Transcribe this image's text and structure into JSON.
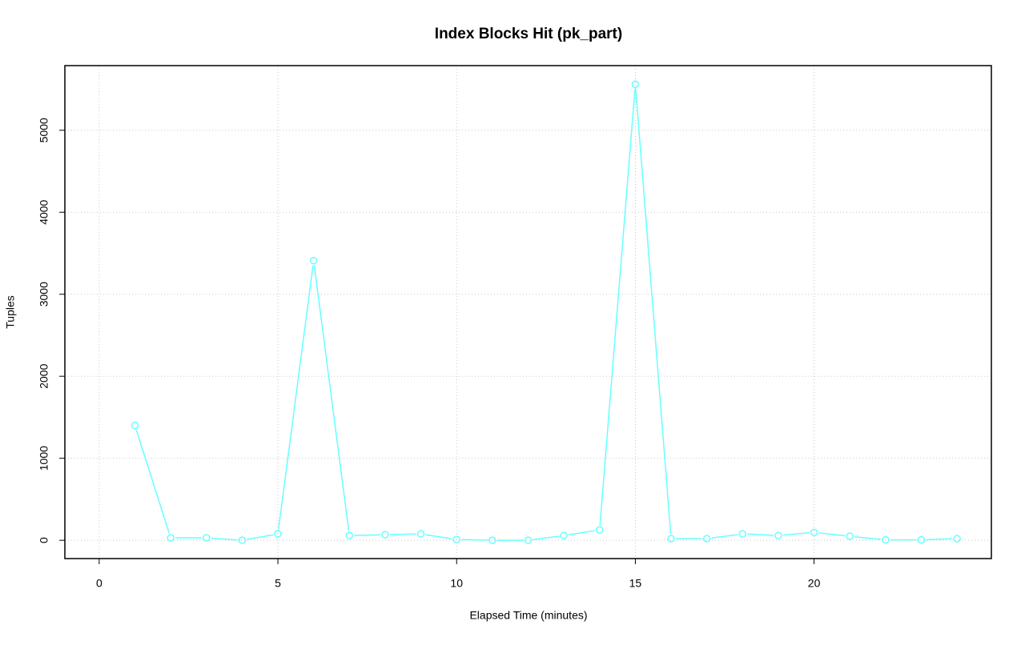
{
  "chart_data": {
    "type": "line",
    "title": "Index Blocks Hit (pk_part)",
    "x_label": "Elapsed Time (minutes)",
    "y_label": "Tuples",
    "x": [
      1,
      2,
      3,
      4,
      5,
      6,
      7,
      8,
      9,
      10,
      11,
      12,
      13,
      14,
      15,
      16,
      17,
      18,
      19,
      20,
      21,
      22,
      23,
      24
    ],
    "series": [
      {
        "name": "pk_part",
        "color": "#66ffff",
        "values": [
          1400,
          30,
          30,
          0,
          78,
          3410,
          58,
          68,
          78,
          10,
          0,
          0,
          58,
          127,
          5560,
          20,
          20,
          78,
          58,
          97,
          49,
          5,
          5,
          20
        ]
      }
    ],
    "xlim": [
      -0.96,
      24.96
    ],
    "xticks": [
      0,
      5,
      10,
      15,
      20
    ],
    "ylim": [
      -223,
      5788
    ],
    "yticks": [
      0,
      1000,
      2000,
      3000,
      4000,
      5000
    ],
    "grid": true
  }
}
